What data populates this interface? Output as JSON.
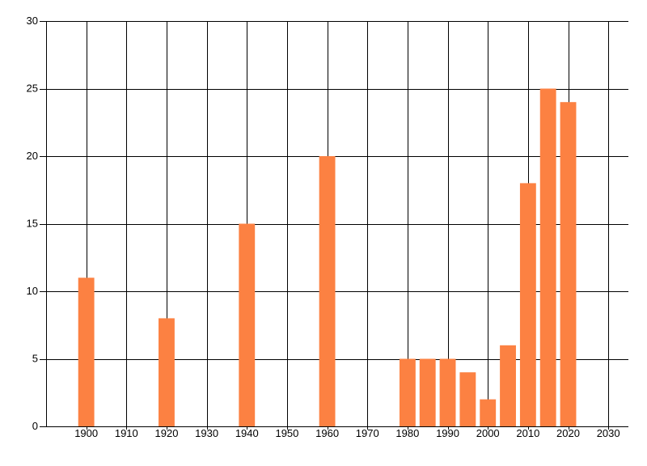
{
  "chart_data": {
    "type": "bar",
    "title": "",
    "xlabel": "",
    "ylabel": "",
    "x": [
      1900,
      1920,
      1940,
      1960,
      1980,
      1985,
      1990,
      1995,
      2000,
      2005,
      2010,
      2015,
      2020
    ],
    "values": [
      11,
      8,
      15,
      20,
      5,
      5,
      5,
      4,
      2,
      6,
      18,
      25,
      24
    ],
    "bar_width_years": 4,
    "xlim": [
      1890,
      2035
    ],
    "ylim": [
      0,
      30
    ],
    "x_ticks": [
      1900,
      1910,
      1920,
      1930,
      1940,
      1950,
      1960,
      1970,
      1980,
      1990,
      2000,
      2010,
      2020,
      2030
    ],
    "x_tick_labels": [
      "1900",
      "1910",
      "1920",
      "1930",
      "1940",
      "1950",
      "1960",
      "1970",
      "1980",
      "1990",
      "2000",
      "2010",
      "2020",
      "2030"
    ],
    "y_ticks": [
      0,
      5,
      10,
      15,
      20,
      25,
      30
    ],
    "y_tick_labels": [
      "0",
      "5",
      "10",
      "15",
      "20",
      "25",
      "30"
    ],
    "grid": true,
    "legend": false,
    "colors": {
      "bar": "#fc8142",
      "grid": "#000000",
      "axis": "#000000",
      "text": "#000000",
      "background": "#ffffff"
    }
  }
}
